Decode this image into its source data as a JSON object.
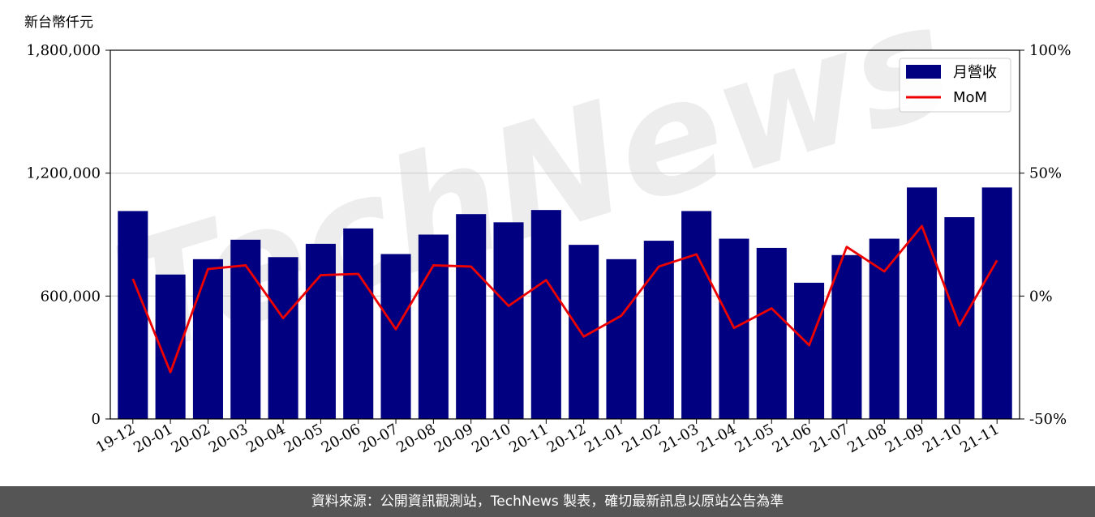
{
  "unit_label": "新台幣仟元",
  "footer_text": "資料來源：公開資訊觀測站，TechNews 製表，確切最新訊息以原站公告為準",
  "watermark": "TechNews",
  "colors": {
    "bar": "#000080",
    "line": "#ee0000",
    "grid": "#d0d0d0",
    "footer_bg": "#555555"
  },
  "chart_data": {
    "type": "bar",
    "categories": [
      "19-12",
      "20-01",
      "20-02",
      "20-03",
      "20-04",
      "20-05",
      "20-06",
      "20-07",
      "20-08",
      "20-09",
      "20-10",
      "20-11",
      "20-12",
      "21-01",
      "21-02",
      "21-03",
      "21-04",
      "21-05",
      "21-06",
      "21-07",
      "21-08",
      "21-09",
      "21-10",
      "21-11"
    ],
    "series": [
      {
        "name": "月營收",
        "type": "bar",
        "axis": "left",
        "values": [
          1015000,
          705000,
          780000,
          875000,
          790000,
          855000,
          930000,
          805000,
          900000,
          1000000,
          960000,
          1020000,
          850000,
          780000,
          870000,
          1015000,
          880000,
          835000,
          665000,
          800000,
          880000,
          1130000,
          985000,
          1130000
        ]
      },
      {
        "name": "MoM",
        "type": "line",
        "axis": "right",
        "values": [
          7,
          -31,
          11,
          12.5,
          -9,
          8.5,
          9,
          -13.5,
          12.5,
          12,
          -4,
          6.5,
          -16.5,
          -8,
          12,
          17,
          -13,
          -5,
          -20,
          20,
          10,
          28.5,
          -12,
          14.5
        ]
      }
    ],
    "y_left": {
      "lim": [
        0,
        1800000
      ],
      "ticks": [
        0,
        600000,
        1200000,
        1800000
      ],
      "tick_labels": [
        "0",
        "600,000",
        "1,200,000",
        "1,800,000"
      ]
    },
    "y_right": {
      "lim": [
        -50,
        100
      ],
      "ticks": [
        -50,
        0,
        50,
        100
      ],
      "tick_labels": [
        "-50%",
        "0%",
        "50%",
        "100%"
      ]
    },
    "grid": "horizontal",
    "legend_position": "top-right"
  }
}
